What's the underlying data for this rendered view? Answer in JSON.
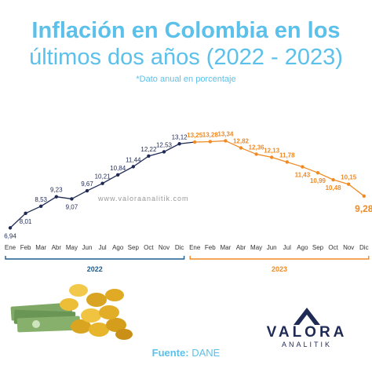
{
  "header": {
    "title_line1": "Inflación en Colombia en los",
    "title_line2": "últimos dos años (2022 - 2023)",
    "subtitle": "*Dato anual en porcentaje"
  },
  "watermark": "www.valoraanalitik.com",
  "footer": {
    "source_label": "Fuente:",
    "source_value": "DANE",
    "brand": "VALORA",
    "brand_sub": "ANALITIK"
  },
  "colors": {
    "title": "#5bc0ea",
    "series_2022": "#1f2a55",
    "series_2023": "#f08a24",
    "year_bracket_2022": "#1f5a8c",
    "year_bracket_2023": "#f08a24"
  },
  "chart_data": {
    "type": "line",
    "categories": [
      "Ene",
      "Feb",
      "Mar",
      "Abr",
      "May",
      "Jun",
      "Jul",
      "Ago",
      "Sep",
      "Oct",
      "Nov",
      "Dic",
      "Ene",
      "Feb",
      "Mar",
      "Abr",
      "May",
      "Jun",
      "Jul",
      "Ago",
      "Sep",
      "Oct",
      "Nov",
      "Dic"
    ],
    "groups": [
      {
        "label": "2022",
        "start": 0,
        "end": 11
      },
      {
        "label": "2023",
        "start": 12,
        "end": 23
      }
    ],
    "values": [
      6.94,
      8.01,
      8.53,
      9.23,
      9.07,
      9.67,
      10.21,
      10.84,
      11.44,
      12.22,
      12.53,
      13.12,
      13.25,
      13.28,
      13.34,
      12.82,
      12.36,
      12.13,
      11.78,
      11.43,
      10.99,
      10.48,
      10.15,
      9.28
    ],
    "value_labels": [
      "6,94",
      "8,01",
      "8,53",
      "9,23",
      "9,07",
      "9,67",
      "10,21",
      "10,84",
      "11,44",
      "12,22",
      "12,53",
      "13,12",
      "13,25",
      "13,28",
      "13,34",
      "12,82",
      "12,36",
      "12,13",
      "11,78",
      "11,43",
      "10,99",
      "10,48",
      "10,15",
      "9,28"
    ],
    "label_position": [
      "below",
      "below",
      "above",
      "above",
      "below",
      "above",
      "above",
      "above",
      "above",
      "above",
      "above",
      "above",
      "above",
      "above",
      "above",
      "above",
      "above",
      "above",
      "above",
      "below",
      "below",
      "below",
      "above",
      "below"
    ],
    "ylim": [
      6.5,
      14
    ],
    "grid": false,
    "legend": "none"
  }
}
